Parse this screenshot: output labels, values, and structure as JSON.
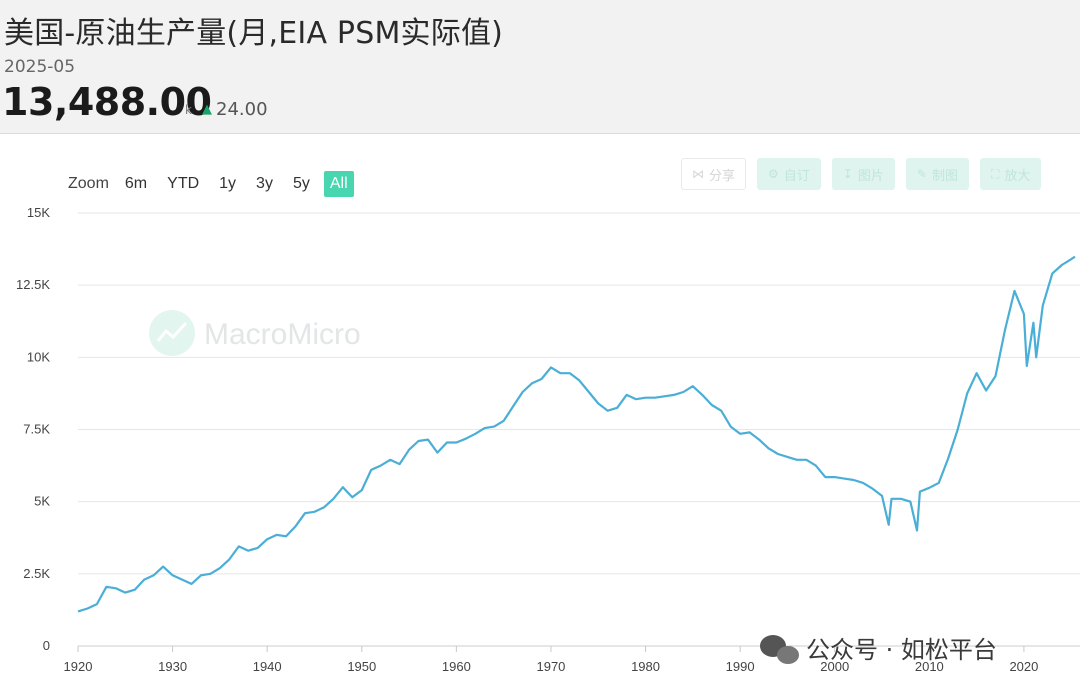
{
  "header": {
    "title": "美国-原油生产量(月,EIA PSM实际值)",
    "date": "2025-05",
    "value": "13,488.00",
    "unit": "k",
    "change": "24.00"
  },
  "zoom": {
    "label": "Zoom",
    "options": [
      "6m",
      "YTD",
      "1y",
      "3y",
      "5y",
      "All"
    ],
    "active": "All"
  },
  "toolbar": {
    "share": "分享",
    "custom": "自订",
    "download": "图片",
    "draw": "制图",
    "expand": "放大"
  },
  "watermark": "MacroMicro",
  "footer": "公众号 · 如松平台",
  "colors": {
    "line": "#4aaed6",
    "accent": "#47d6b0",
    "up": "#1aa36a"
  },
  "chart_data": {
    "type": "line",
    "title": "",
    "xlabel": "",
    "ylabel": "",
    "x_range": [
      1920,
      2025.4
    ],
    "ylim": [
      0,
      15000
    ],
    "yticks": [
      0,
      2500,
      5000,
      7500,
      10000,
      12500,
      15000
    ],
    "ytick_labels": [
      "0",
      "2.5K",
      "5K",
      "7.5K",
      "10K",
      "12.5K",
      "15K"
    ],
    "xticks": [
      1920,
      1930,
      1940,
      1950,
      1960,
      1970,
      1980,
      1990,
      2000,
      2010,
      2020
    ],
    "grid": true,
    "series": [
      {
        "name": "",
        "x": [
          1920,
          1921,
          1922,
          1923,
          1924,
          1925,
          1926,
          1927,
          1928,
          1929,
          1930,
          1931,
          1932,
          1933,
          1934,
          1935,
          1936,
          1937,
          1938,
          1939,
          1940,
          1941,
          1942,
          1943,
          1944,
          1945,
          1946,
          1947,
          1948,
          1949,
          1950,
          1951,
          1952,
          1953,
          1954,
          1955,
          1956,
          1957,
          1958,
          1959,
          1960,
          1961,
          1962,
          1963,
          1964,
          1965,
          1966,
          1967,
          1968,
          1969,
          1970,
          1971,
          1972,
          1973,
          1974,
          1975,
          1976,
          1977,
          1978,
          1979,
          1980,
          1981,
          1982,
          1983,
          1984,
          1985,
          1986,
          1987,
          1988,
          1989,
          1990,
          1991,
          1992,
          1993,
          1994,
          1995,
          1996,
          1997,
          1998,
          1999,
          2000,
          2001,
          2002,
          2003,
          2004,
          2005,
          2005.7,
          2006,
          2007,
          2008,
          2008.7,
          2009,
          2010,
          2011,
          2012,
          2013,
          2014,
          2015,
          2016,
          2017,
          2018,
          2019,
          2020,
          2020.3,
          2021,
          2021.3,
          2022,
          2023,
          2024,
          2025,
          2025.4
        ],
        "values": [
          1200,
          1300,
          1450,
          2050,
          2000,
          1850,
          1950,
          2300,
          2450,
          2750,
          2450,
          2300,
          2150,
          2450,
          2500,
          2700,
          3000,
          3450,
          3300,
          3400,
          3700,
          3850,
          3800,
          4150,
          4600,
          4650,
          4800,
          5100,
          5500,
          5150,
          5400,
          6100,
          6250,
          6450,
          6300,
          6800,
          7100,
          7150,
          6700,
          7050,
          7050,
          7180,
          7350,
          7550,
          7600,
          7800,
          8300,
          8800,
          9100,
          9250,
          9650,
          9450,
          9450,
          9200,
          8800,
          8400,
          8150,
          8250,
          8700,
          8550,
          8600,
          8600,
          8650,
          8700,
          8800,
          9000,
          8700,
          8350,
          8150,
          7600,
          7350,
          7400,
          7150,
          6850,
          6650,
          6550,
          6450,
          6450,
          6250,
          5850,
          5850,
          5800,
          5750,
          5650,
          5450,
          5200,
          4200,
          5100,
          5100,
          5000,
          4000,
          5350,
          5480,
          5650,
          6500,
          7500,
          8750,
          9450,
          8850,
          9350,
          10950,
          12300,
          11500,
          9700,
          11200,
          10000,
          11800,
          12900,
          13200,
          13400,
          13488
        ]
      }
    ]
  }
}
